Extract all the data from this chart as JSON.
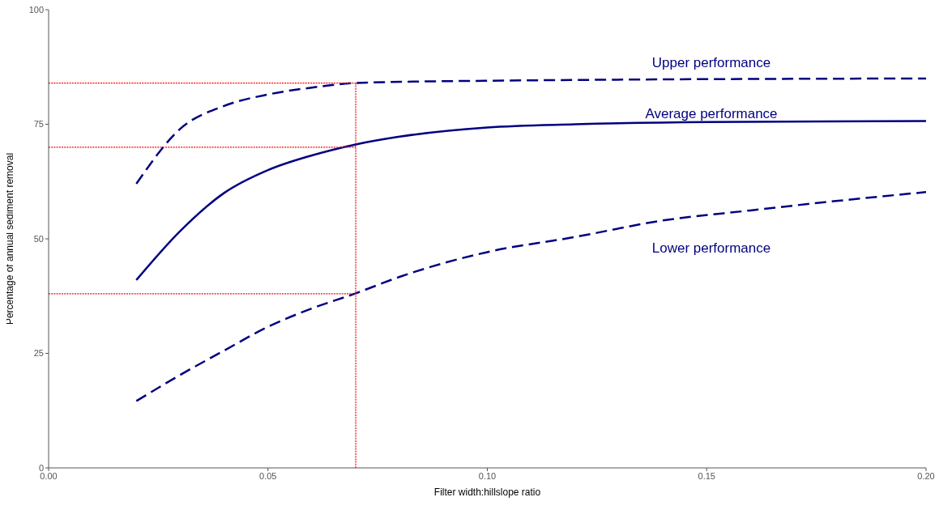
{
  "chart_data": {
    "type": "line",
    "xlabel": "Filter width:hillslope ratio",
    "ylabel": "Percentage of annual sediment removal",
    "xlim": [
      0,
      0.2
    ],
    "xticks": [
      {
        "value": 0,
        "label": "0.00"
      },
      0.05,
      {
        "value": 0.1,
        "label": "0.10"
      },
      0.15,
      {
        "value": 0.2,
        "label": "0.20"
      }
    ],
    "ylim": [
      0,
      100
    ],
    "yticks": [
      0,
      25,
      50,
      75,
      100
    ],
    "marker": "none",
    "series": [
      {
        "color": "#000080",
        "line_style": "dashed",
        "x": [
          0.02,
          0.03,
          0.04,
          0.05,
          0.06,
          0.07,
          0.1,
          0.2
        ],
        "values": [
          62,
          74,
          79,
          81.5,
          83,
          84,
          84.5,
          85
        ]
      },
      {
        "color": "#000080",
        "line_style": "solid",
        "x": [
          0.02,
          0.03,
          0.04,
          0.05,
          0.06,
          0.07,
          0.08,
          0.1,
          0.12,
          0.15,
          0.2
        ],
        "values": [
          41,
          51.7,
          60,
          65,
          68.2,
          70.6,
          72.3,
          74.3,
          75,
          75.5,
          75.7
        ]
      },
      {
        "color": "#000080",
        "line_style": "dashed",
        "x": [
          0.02,
          0.03,
          0.04,
          0.05,
          0.06,
          0.07,
          0.08,
          0.1,
          0.12,
          0.14,
          0.16,
          0.18,
          0.2
        ],
        "values": [
          14.6,
          20.3,
          25.6,
          30.8,
          34.8,
          38.1,
          41.7,
          47.1,
          50.4,
          54,
          56.2,
          58.3,
          60.2
        ]
      },
      {
        "color": "#ff0000",
        "line_style": "dotted",
        "x": [
          0,
          0.07
        ],
        "values": [
          84,
          84
        ]
      },
      {
        "color": "#ff0000",
        "line_style": "dotted",
        "x": [
          0,
          0.07
        ],
        "values": [
          70,
          70
        ]
      },
      {
        "color": "#ff0000",
        "line_style": "dotted",
        "x": [
          0,
          0.07
        ],
        "values": [
          38,
          38
        ]
      },
      {
        "color": "#ff0000",
        "line_style": "dotted",
        "x": [
          0.07,
          0.07
        ],
        "values": [
          0,
          84
        ]
      }
    ],
    "annotations": [
      "Upper performance",
      "Average performance",
      "Lower performance"
    ]
  }
}
